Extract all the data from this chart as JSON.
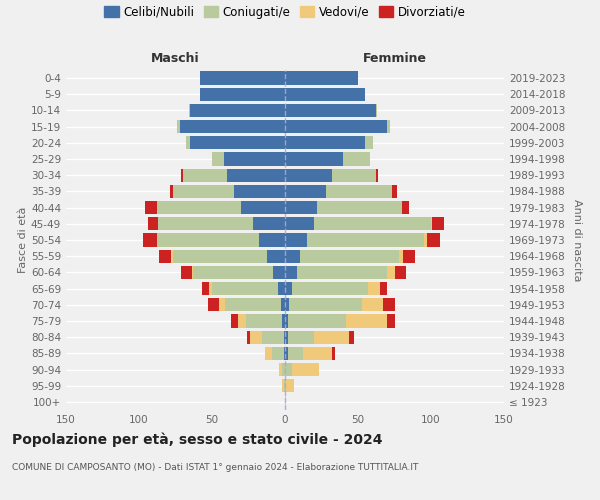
{
  "age_groups": [
    "100+",
    "95-99",
    "90-94",
    "85-89",
    "80-84",
    "75-79",
    "70-74",
    "65-69",
    "60-64",
    "55-59",
    "50-54",
    "45-49",
    "40-44",
    "35-39",
    "30-34",
    "25-29",
    "20-24",
    "15-19",
    "10-14",
    "5-9",
    "0-4"
  ],
  "birth_years": [
    "≤ 1923",
    "1924-1928",
    "1929-1933",
    "1934-1938",
    "1939-1943",
    "1944-1948",
    "1949-1953",
    "1954-1958",
    "1959-1963",
    "1964-1968",
    "1969-1973",
    "1974-1978",
    "1979-1983",
    "1984-1988",
    "1989-1993",
    "1994-1998",
    "1999-2003",
    "2004-2008",
    "2009-2013",
    "2014-2018",
    "2019-2023"
  ],
  "colors": {
    "celibi": "#4472a8",
    "coniugati": "#b8ca9e",
    "vedovi": "#f0c97a",
    "divorziati": "#cc2222"
  },
  "maschi_celibi": [
    0,
    0,
    0,
    1,
    1,
    2,
    3,
    5,
    8,
    12,
    18,
    22,
    30,
    35,
    40,
    42,
    65,
    72,
    65,
    58,
    58
  ],
  "maschi_coniugati": [
    0,
    1,
    2,
    8,
    15,
    25,
    38,
    45,
    55,
    65,
    70,
    65,
    58,
    42,
    30,
    8,
    3,
    2,
    1,
    0,
    0
  ],
  "maschi_vedovi": [
    0,
    1,
    2,
    5,
    8,
    5,
    4,
    2,
    1,
    1,
    0,
    0,
    0,
    0,
    0,
    0,
    0,
    0,
    0,
    0,
    0
  ],
  "maschi_divorziati": [
    0,
    0,
    0,
    0,
    2,
    5,
    8,
    5,
    7,
    8,
    9,
    7,
    8,
    2,
    1,
    0,
    0,
    0,
    0,
    0,
    0
  ],
  "femmine_celibi": [
    0,
    0,
    0,
    2,
    2,
    2,
    3,
    5,
    8,
    10,
    15,
    20,
    22,
    28,
    32,
    40,
    55,
    70,
    62,
    55,
    50
  ],
  "femmine_coniugati": [
    0,
    1,
    5,
    10,
    18,
    40,
    50,
    52,
    62,
    68,
    80,
    80,
    58,
    45,
    30,
    18,
    5,
    2,
    1,
    0,
    0
  ],
  "femmine_vedovi": [
    1,
    5,
    18,
    20,
    24,
    28,
    14,
    8,
    5,
    3,
    2,
    1,
    0,
    0,
    0,
    0,
    0,
    0,
    0,
    0,
    0
  ],
  "femmine_divorziati": [
    0,
    0,
    0,
    2,
    3,
    5,
    8,
    5,
    8,
    8,
    9,
    8,
    5,
    4,
    2,
    0,
    0,
    0,
    0,
    0,
    0
  ],
  "xlim": 150,
  "title": "Popolazione per età, sesso e stato civile - 2024",
  "subtitle": "COMUNE DI CAMPOSANTO (MO) - Dati ISTAT 1° gennaio 2024 - Elaborazione TUTTITALIA.IT",
  "ylabel_left": "Fasce di età",
  "ylabel_right": "Anni di nascita",
  "xlabel_left": "Maschi",
  "xlabel_right": "Femmine",
  "bg_color": "#f0f0f0",
  "legend_labels": [
    "Celibi/Nubili",
    "Coniugati/e",
    "Vedovi/e",
    "Divorziati/e"
  ]
}
